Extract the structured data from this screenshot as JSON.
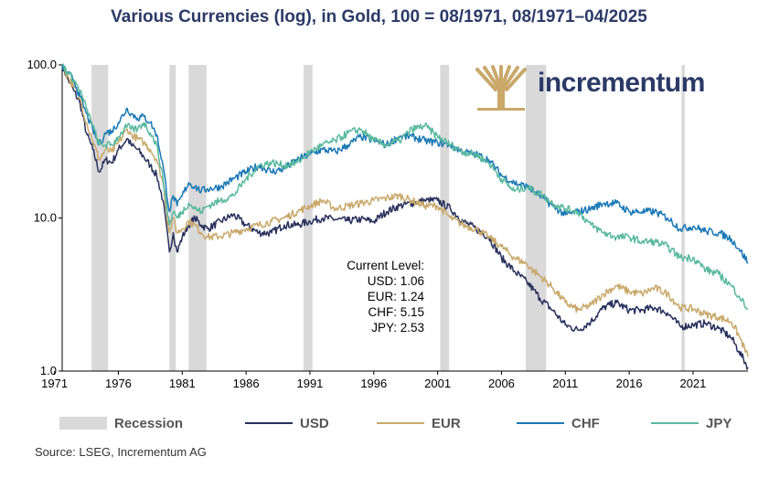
{
  "chart_data": {
    "type": "line",
    "title": "Various Currencies (log), in Gold, 100 = 08/1971, 08/1971–04/2025",
    "yscale": "log",
    "ylim": [
      1.0,
      100.0
    ],
    "yticks": [
      "100.0",
      "10.0",
      "1.0"
    ],
    "xlim": [
      1971.6,
      2025.3
    ],
    "xticks": [
      "1971",
      "1976",
      "1981",
      "1986",
      "1991",
      "1996",
      "2001",
      "2006",
      "2011",
      "2016",
      "2021"
    ],
    "recessions": [
      [
        1973.9,
        1975.2
      ],
      [
        1980.0,
        1980.5
      ],
      [
        1981.5,
        1982.9
      ],
      [
        1990.5,
        1991.2
      ],
      [
        2001.2,
        2001.9
      ],
      [
        2007.9,
        2009.5
      ],
      [
        2020.1,
        2020.35
      ]
    ],
    "series": [
      {
        "name": "USD",
        "color": "#27305c",
        "points": [
          [
            1971.6,
            100
          ],
          [
            1972.0,
            82
          ],
          [
            1972.5,
            68
          ],
          [
            1973.0,
            56
          ],
          [
            1973.5,
            36
          ],
          [
            1974.0,
            28
          ],
          [
            1974.5,
            20
          ],
          [
            1975.0,
            24
          ],
          [
            1975.5,
            23
          ],
          [
            1976.0,
            28
          ],
          [
            1976.7,
            33
          ],
          [
            1977.0,
            30
          ],
          [
            1977.5,
            28
          ],
          [
            1978.0,
            25
          ],
          [
            1978.5,
            22
          ],
          [
            1979.0,
            19
          ],
          [
            1979.5,
            13
          ],
          [
            1980.0,
            6
          ],
          [
            1980.3,
            8
          ],
          [
            1980.6,
            6
          ],
          [
            1981.0,
            7.5
          ],
          [
            1981.5,
            9
          ],
          [
            1982.0,
            10
          ],
          [
            1982.5,
            9
          ],
          [
            1983.0,
            8.5
          ],
          [
            1984.0,
            9.5
          ],
          [
            1985.0,
            10.5
          ],
          [
            1986.0,
            9
          ],
          [
            1987.0,
            8
          ],
          [
            1988.0,
            8
          ],
          [
            1989.0,
            9
          ],
          [
            1990.0,
            9
          ],
          [
            1991.0,
            9.5
          ],
          [
            1992.0,
            10
          ],
          [
            1993.0,
            9.8
          ],
          [
            1994.0,
            9.6
          ],
          [
            1995.0,
            9.8
          ],
          [
            1996.0,
            9.5
          ],
          [
            1997.0,
            11
          ],
          [
            1998.0,
            12
          ],
          [
            1999.0,
            12.5
          ],
          [
            2000.0,
            13
          ],
          [
            2001.0,
            13
          ],
          [
            2002.0,
            11.5
          ],
          [
            2003.0,
            9.5
          ],
          [
            2004.0,
            8.5
          ],
          [
            2005.0,
            7.5
          ],
          [
            2006.0,
            5.5
          ],
          [
            2007.0,
            4.5
          ],
          [
            2008.0,
            3.8
          ],
          [
            2008.5,
            3.4
          ],
          [
            2009.0,
            3
          ],
          [
            2010.0,
            2.5
          ],
          [
            2011.0,
            2
          ],
          [
            2012.0,
            1.85
          ],
          [
            2013.0,
            2.1
          ],
          [
            2014.0,
            2.6
          ],
          [
            2015.0,
            2.8
          ],
          [
            2016.0,
            2.5
          ],
          [
            2017.0,
            2.5
          ],
          [
            2018.0,
            2.6
          ],
          [
            2019.0,
            2.4
          ],
          [
            2020.0,
            1.95
          ],
          [
            2021.0,
            2
          ],
          [
            2022.0,
            2.05
          ],
          [
            2023.0,
            1.9
          ],
          [
            2024.0,
            1.65
          ],
          [
            2024.6,
            1.35
          ],
          [
            2025.3,
            1.06
          ]
        ]
      },
      {
        "name": "EUR",
        "color": "#c9a86a",
        "points": [
          [
            1971.6,
            100
          ],
          [
            1972.0,
            85
          ],
          [
            1972.5,
            72
          ],
          [
            1973.0,
            60
          ],
          [
            1973.5,
            42
          ],
          [
            1974.0,
            32
          ],
          [
            1974.5,
            24
          ],
          [
            1975.0,
            28
          ],
          [
            1975.5,
            27
          ],
          [
            1976.0,
            31
          ],
          [
            1976.7,
            38
          ],
          [
            1977.0,
            35
          ],
          [
            1977.5,
            33
          ],
          [
            1978.0,
            31
          ],
          [
            1978.5,
            28
          ],
          [
            1979.0,
            24
          ],
          [
            1979.5,
            17
          ],
          [
            1980.0,
            8
          ],
          [
            1980.3,
            10
          ],
          [
            1980.6,
            8
          ],
          [
            1981.0,
            8.5
          ],
          [
            1981.5,
            9.5
          ],
          [
            1982.0,
            9
          ],
          [
            1982.5,
            8
          ],
          [
            1983.0,
            7.5
          ],
          [
            1984.0,
            7.6
          ],
          [
            1985.0,
            8
          ],
          [
            1986.0,
            8.5
          ],
          [
            1987.0,
            9
          ],
          [
            1988.0,
            9.5
          ],
          [
            1989.0,
            10
          ],
          [
            1990.0,
            11
          ],
          [
            1991.0,
            12
          ],
          [
            1992.0,
            13
          ],
          [
            1993.0,
            11.5
          ],
          [
            1994.0,
            12
          ],
          [
            1995.0,
            12.5
          ],
          [
            1996.0,
            13
          ],
          [
            1997.0,
            13.5
          ],
          [
            1998.0,
            14
          ],
          [
            1999.0,
            13
          ],
          [
            2000.0,
            12
          ],
          [
            2001.0,
            12
          ],
          [
            2002.0,
            10
          ],
          [
            2003.0,
            9
          ],
          [
            2004.0,
            8.5
          ],
          [
            2005.0,
            7.5
          ],
          [
            2006.0,
            6.5
          ],
          [
            2007.0,
            5.5
          ],
          [
            2008.0,
            5
          ],
          [
            2008.5,
            4.5
          ],
          [
            2009.0,
            4.2
          ],
          [
            2010.0,
            3.5
          ],
          [
            2011.0,
            2.8
          ],
          [
            2012.0,
            2.5
          ],
          [
            2013.0,
            2.7
          ],
          [
            2014.0,
            3.2
          ],
          [
            2015.0,
            3.6
          ],
          [
            2016.0,
            3.3
          ],
          [
            2017.0,
            3.2
          ],
          [
            2018.0,
            3.5
          ],
          [
            2019.0,
            3.2
          ],
          [
            2020.0,
            2.6
          ],
          [
            2021.0,
            2.55
          ],
          [
            2022.0,
            2.35
          ],
          [
            2023.0,
            2.25
          ],
          [
            2024.0,
            2.1
          ],
          [
            2024.6,
            1.7
          ],
          [
            2025.3,
            1.24
          ]
        ]
      },
      {
        "name": "CHF",
        "color": "#1a78b5",
        "points": [
          [
            1971.6,
            100
          ],
          [
            1972.0,
            88
          ],
          [
            1972.5,
            80
          ],
          [
            1973.0,
            62
          ],
          [
            1973.5,
            48
          ],
          [
            1974.0,
            38
          ],
          [
            1974.5,
            30
          ],
          [
            1975.0,
            36
          ],
          [
            1975.5,
            37
          ],
          [
            1976.0,
            42
          ],
          [
            1976.7,
            52
          ],
          [
            1977.0,
            48
          ],
          [
            1977.5,
            45
          ],
          [
            1978.0,
            46
          ],
          [
            1978.5,
            42
          ],
          [
            1979.0,
            35
          ],
          [
            1979.5,
            22
          ],
          [
            1980.0,
            11
          ],
          [
            1980.3,
            14
          ],
          [
            1980.6,
            12
          ],
          [
            1981.0,
            14
          ],
          [
            1981.5,
            17
          ],
          [
            1982.0,
            16
          ],
          [
            1982.5,
            15
          ],
          [
            1983.0,
            15.5
          ],
          [
            1984.0,
            16
          ],
          [
            1985.0,
            18
          ],
          [
            1986.0,
            20
          ],
          [
            1987.0,
            22
          ],
          [
            1988.0,
            20
          ],
          [
            1989.0,
            21
          ],
          [
            1990.0,
            24
          ],
          [
            1991.0,
            26
          ],
          [
            1992.0,
            28
          ],
          [
            1993.0,
            27
          ],
          [
            1994.0,
            30
          ],
          [
            1995.0,
            34
          ],
          [
            1996.0,
            32
          ],
          [
            1997.0,
            30
          ],
          [
            1998.0,
            34
          ],
          [
            1999.0,
            34
          ],
          [
            2000.0,
            32
          ],
          [
            2001.0,
            31
          ],
          [
            2002.0,
            30
          ],
          [
            2003.0,
            27
          ],
          [
            2004.0,
            26
          ],
          [
            2005.0,
            24
          ],
          [
            2006.0,
            19
          ],
          [
            2007.0,
            17
          ],
          [
            2008.0,
            16
          ],
          [
            2008.5,
            15
          ],
          [
            2009.0,
            14
          ],
          [
            2010.0,
            12
          ],
          [
            2011.0,
            10.5
          ],
          [
            2012.0,
            11
          ],
          [
            2013.0,
            11.5
          ],
          [
            2014.0,
            12.5
          ],
          [
            2015.0,
            12.5
          ],
          [
            2016.0,
            11
          ],
          [
            2017.0,
            11
          ],
          [
            2018.0,
            11
          ],
          [
            2019.0,
            10
          ],
          [
            2020.0,
            8.5
          ],
          [
            2021.0,
            8.8
          ],
          [
            2022.0,
            8.2
          ],
          [
            2023.0,
            8
          ],
          [
            2024.0,
            7.3
          ],
          [
            2024.6,
            6.3
          ],
          [
            2025.3,
            5.15
          ]
        ]
      },
      {
        "name": "JPY",
        "color": "#5ab99e",
        "points": [
          [
            1971.6,
            100
          ],
          [
            1972.0,
            90
          ],
          [
            1972.5,
            80
          ],
          [
            1973.0,
            68
          ],
          [
            1973.5,
            52
          ],
          [
            1974.0,
            40
          ],
          [
            1974.5,
            30
          ],
          [
            1975.0,
            30
          ],
          [
            1975.5,
            30
          ],
          [
            1976.0,
            34
          ],
          [
            1976.7,
            40
          ],
          [
            1977.0,
            38
          ],
          [
            1977.5,
            38
          ],
          [
            1978.0,
            42
          ],
          [
            1978.5,
            36
          ],
          [
            1979.0,
            30
          ],
          [
            1979.5,
            18
          ],
          [
            1980.0,
            9
          ],
          [
            1980.3,
            11
          ],
          [
            1980.6,
            10
          ],
          [
            1981.0,
            11
          ],
          [
            1981.5,
            12.5
          ],
          [
            1982.0,
            11.5
          ],
          [
            1982.5,
            11
          ],
          [
            1983.0,
            12
          ],
          [
            1984.0,
            13
          ],
          [
            1985.0,
            14
          ],
          [
            1986.0,
            18
          ],
          [
            1987.0,
            22
          ],
          [
            1988.0,
            23
          ],
          [
            1989.0,
            22
          ],
          [
            1990.0,
            23
          ],
          [
            1991.0,
            27
          ],
          [
            1992.0,
            30
          ],
          [
            1993.0,
            32
          ],
          [
            1994.0,
            36
          ],
          [
            1995.0,
            38
          ],
          [
            1996.0,
            32
          ],
          [
            1997.0,
            30
          ],
          [
            1998.0,
            32
          ],
          [
            1999.0,
            38
          ],
          [
            2000.0,
            40
          ],
          [
            2001.0,
            34
          ],
          [
            2002.0,
            30
          ],
          [
            2003.0,
            27
          ],
          [
            2004.0,
            26
          ],
          [
            2005.0,
            23
          ],
          [
            2006.0,
            18
          ],
          [
            2007.0,
            15
          ],
          [
            2008.0,
            16
          ],
          [
            2008.5,
            15
          ],
          [
            2009.0,
            14.5
          ],
          [
            2010.0,
            12.5
          ],
          [
            2011.0,
            11.5
          ],
          [
            2012.0,
            11
          ],
          [
            2013.0,
            9
          ],
          [
            2014.0,
            8
          ],
          [
            2015.0,
            7.5
          ],
          [
            2016.0,
            7.5
          ],
          [
            2017.0,
            7
          ],
          [
            2018.0,
            7
          ],
          [
            2019.0,
            6.5
          ],
          [
            2020.0,
            5.5
          ],
          [
            2021.0,
            5.5
          ],
          [
            2022.0,
            4.6
          ],
          [
            2023.0,
            4.3
          ],
          [
            2024.0,
            3.6
          ],
          [
            2024.6,
            3.1
          ],
          [
            2025.3,
            2.53
          ]
        ]
      }
    ],
    "legend": [
      {
        "name": "Recession",
        "kind": "area",
        "color": "#d9d9d9"
      },
      {
        "name": "USD",
        "kind": "line",
        "color": "#27305c"
      },
      {
        "name": "EUR",
        "kind": "line",
        "color": "#c9a86a"
      },
      {
        "name": "CHF",
        "kind": "line",
        "color": "#1a78b5"
      },
      {
        "name": "JPY",
        "kind": "line",
        "color": "#5ab99e"
      }
    ],
    "annotation": {
      "heading": "Current Level:",
      "lines": [
        "USD: 1.06",
        "EUR: 1.24",
        "CHF: 5.15",
        "JPY: 2.53"
      ]
    },
    "source": "Source: LSEG, Incrementum AG"
  },
  "logo": {
    "text": "incrementum",
    "color": "#2b3a67",
    "accent": "#c9a86a"
  }
}
